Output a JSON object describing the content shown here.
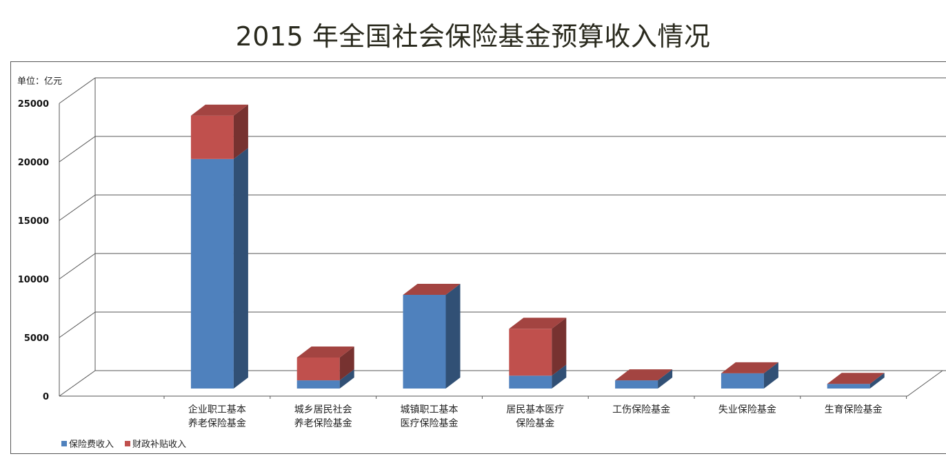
{
  "chart_data": {
    "type": "bar",
    "stacked": true,
    "title": "2015 年全国社会保险基金预算收入情况",
    "unit_label": "单位：亿元",
    "ylim": [
      0,
      25000
    ],
    "yticks": [
      "0",
      "5000",
      "10000",
      "15000",
      "20000",
      "25000"
    ],
    "categories": [
      [
        "企业职工基本",
        "养老保险基金"
      ],
      [
        "城乡居民社会",
        "养老保险基金"
      ],
      [
        "城镇职工基本",
        "医疗保险基金"
      ],
      [
        "居民基本医疗",
        "保险基金"
      ],
      [
        "工伤保险基金"
      ],
      [
        "失业保险基金"
      ],
      [
        "生育保险基金"
      ]
    ],
    "series": [
      {
        "name": "保险费收入",
        "color": "#4f81bd",
        "values": [
          19600,
          700,
          8000,
          1100,
          700,
          1300,
          400
        ]
      },
      {
        "name": "财政补贴收入",
        "color": "#c0504d",
        "values": [
          3700,
          1950,
          0,
          4000,
          0,
          0,
          0
        ]
      }
    ],
    "legend_position": "bottom-left",
    "grid": true
  }
}
